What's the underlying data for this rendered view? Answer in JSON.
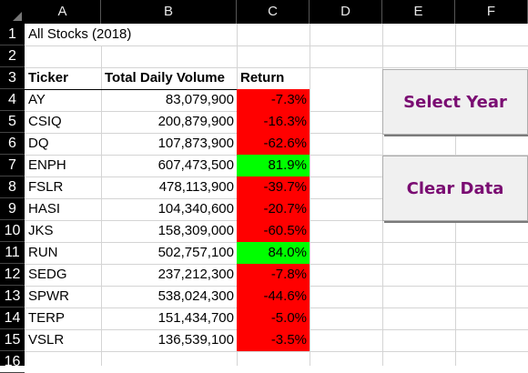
{
  "columns": [
    "A",
    "B",
    "C",
    "D",
    "E",
    "F"
  ],
  "rows": [
    "1",
    "2",
    "3",
    "4",
    "5",
    "6",
    "7",
    "8",
    "9",
    "10",
    "11",
    "12",
    "13",
    "14",
    "15",
    "16"
  ],
  "title": "All Stocks (2018)",
  "table": {
    "headers": [
      "Ticker",
      "Total Daily Volume",
      "Return"
    ],
    "rows": [
      {
        "ticker": "AY",
        "volume": "83,079,900",
        "ret": "-7.3%",
        "status": "negative"
      },
      {
        "ticker": "CSIQ",
        "volume": "200,879,900",
        "ret": "-16.3%",
        "status": "negative"
      },
      {
        "ticker": "DQ",
        "volume": "107,873,900",
        "ret": "-62.6%",
        "status": "negative"
      },
      {
        "ticker": "ENPH",
        "volume": "607,473,500",
        "ret": "81.9%",
        "status": "positive"
      },
      {
        "ticker": "FSLR",
        "volume": "478,113,900",
        "ret": "-39.7%",
        "status": "negative"
      },
      {
        "ticker": "HASI",
        "volume": "104,340,600",
        "ret": "-20.7%",
        "status": "negative"
      },
      {
        "ticker": "JKS",
        "volume": "158,309,000",
        "ret": "-60.5%",
        "status": "negative"
      },
      {
        "ticker": "RUN",
        "volume": "502,757,100",
        "ret": "84.0%",
        "status": "positive"
      },
      {
        "ticker": "SEDG",
        "volume": "237,212,300",
        "ret": "-7.8%",
        "status": "negative"
      },
      {
        "ticker": "SPWR",
        "volume": "538,024,300",
        "ret": "-44.6%",
        "status": "negative"
      },
      {
        "ticker": "TERP",
        "volume": "151,434,700",
        "ret": "-5.0%",
        "status": "negative"
      },
      {
        "ticker": "VSLR",
        "volume": "136,539,100",
        "ret": "-3.5%",
        "status": "negative"
      }
    ]
  },
  "buttons": {
    "select_year": "Select Year",
    "clear_data": "Clear Data"
  },
  "colors": {
    "negative": "#ff0000",
    "positive": "#00ff00",
    "button_text": "#7a0c72"
  }
}
